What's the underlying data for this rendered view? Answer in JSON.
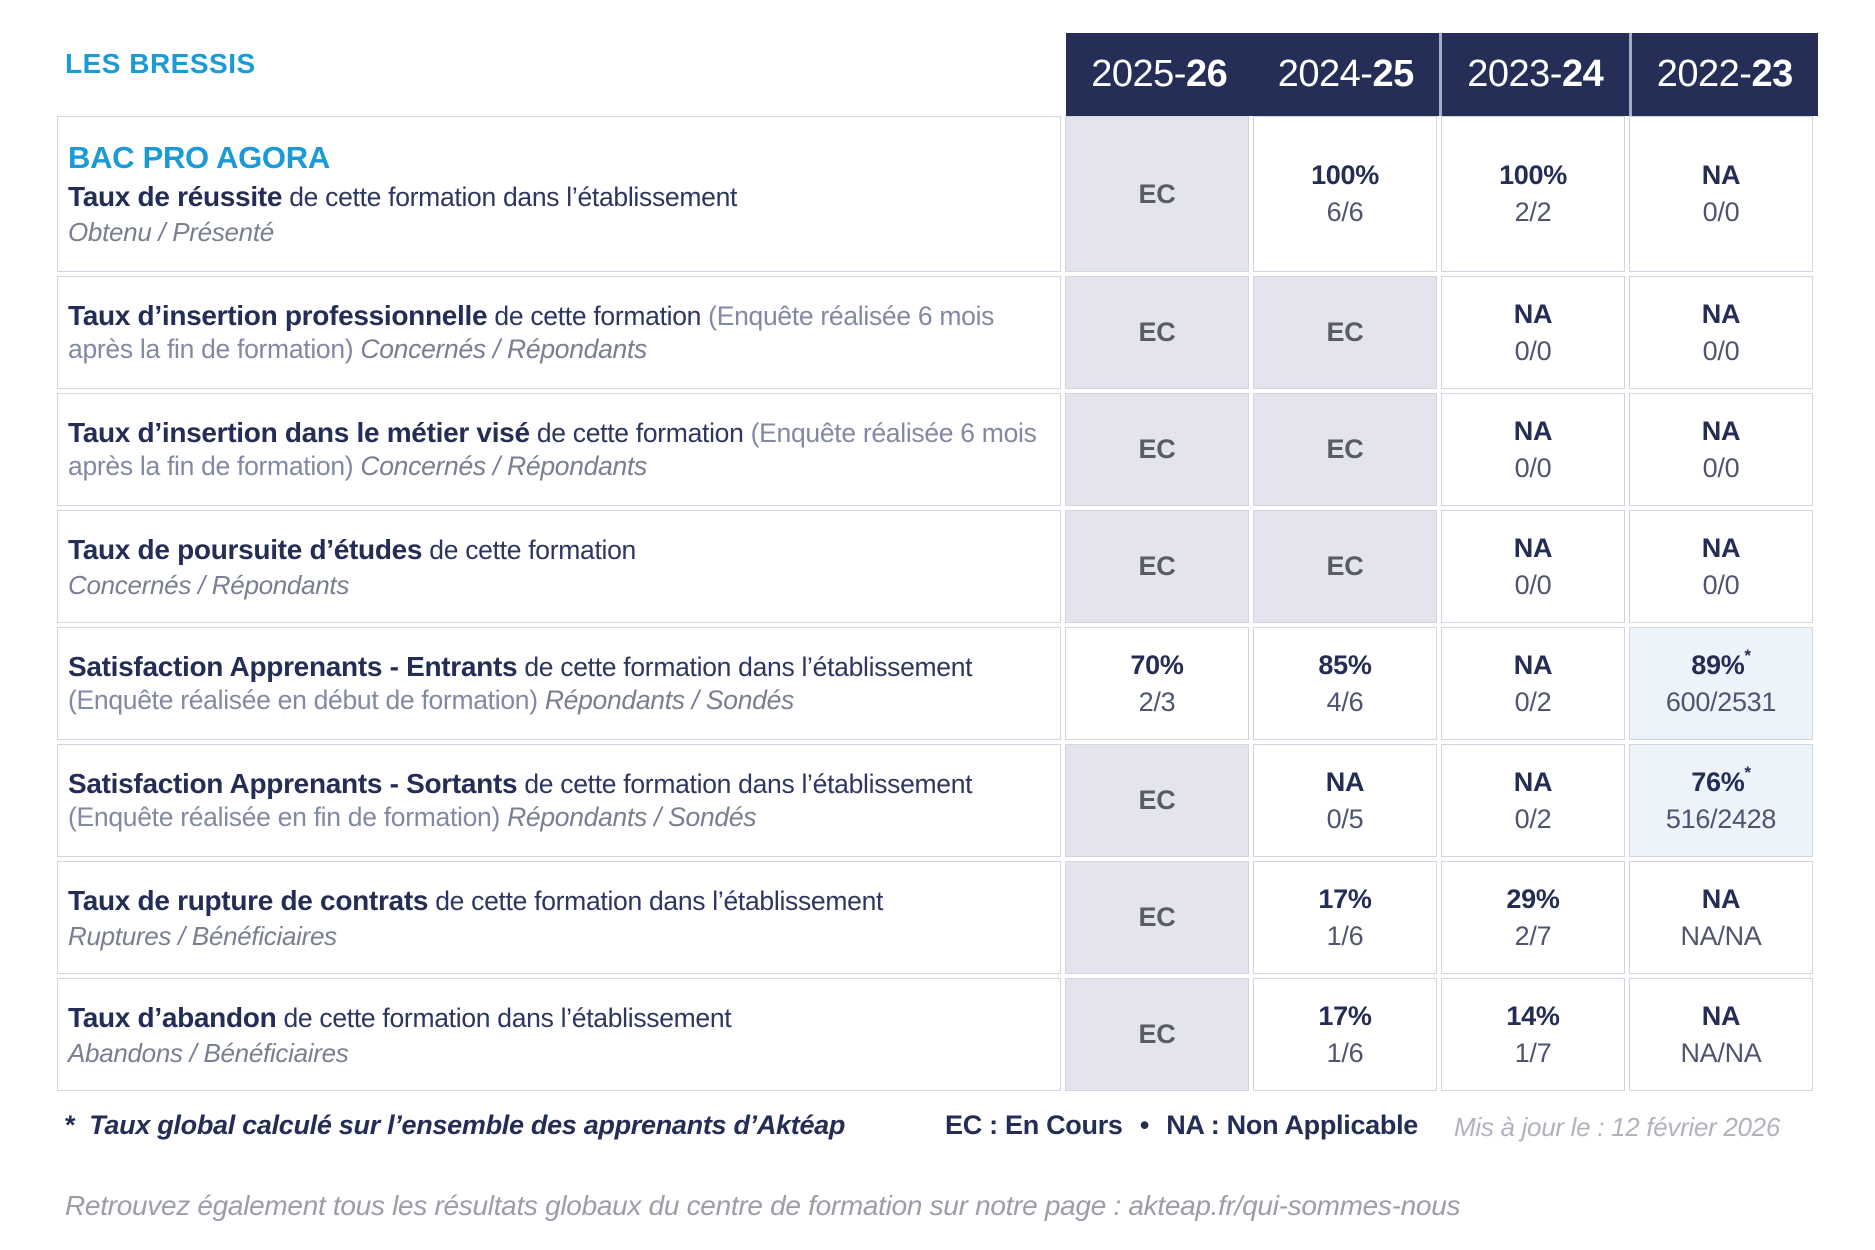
{
  "brand": {
    "site_name": "LES BRESSIS"
  },
  "table": {
    "program_title": "BAC PRO AGORA",
    "year_columns": [
      {
        "prefix": "2025-",
        "bold": "26"
      },
      {
        "prefix": "2024-",
        "bold": "25"
      },
      {
        "prefix": "2023-",
        "bold": "24"
      },
      {
        "prefix": "2022-",
        "bold": "23"
      }
    ],
    "rows": [
      {
        "bold": "Taux de réussite",
        "normal": "de cette formation dans l’établissement",
        "paren": "",
        "inline_italic": "",
        "block_italic": "Obtenu / Présenté",
        "cells": [
          {
            "main": "EC",
            "sub": ""
          },
          {
            "main": "100%",
            "sub": "6/6"
          },
          {
            "main": "100%",
            "sub": "2/2"
          },
          {
            "main": "NA",
            "sub": "0/0"
          }
        ]
      },
      {
        "bold": "Taux d’insertion professionnelle",
        "normal": "de cette formation",
        "paren": "(Enquête réalisée 6 mois après la fin de formation)",
        "inline_italic": "Concernés / Répondants",
        "block_italic": "",
        "cells": [
          {
            "main": "EC",
            "sub": ""
          },
          {
            "main": "EC",
            "sub": ""
          },
          {
            "main": "NA",
            "sub": "0/0"
          },
          {
            "main": "NA",
            "sub": "0/0"
          }
        ]
      },
      {
        "bold": "Taux d’insertion dans le métier visé",
        "normal": "de cette formation",
        "paren": "(Enquête réalisée 6 mois après la fin de formation)",
        "inline_italic": "Concernés / Répondants",
        "block_italic": "",
        "cells": [
          {
            "main": "EC",
            "sub": ""
          },
          {
            "main": "EC",
            "sub": ""
          },
          {
            "main": "NA",
            "sub": "0/0"
          },
          {
            "main": "NA",
            "sub": "0/0"
          }
        ]
      },
      {
        "bold": "Taux de poursuite d’études",
        "normal": "de cette formation",
        "paren": "",
        "inline_italic": "",
        "block_italic": "Concernés / Répondants",
        "cells": [
          {
            "main": "EC",
            "sub": ""
          },
          {
            "main": "EC",
            "sub": ""
          },
          {
            "main": "NA",
            "sub": "0/0"
          },
          {
            "main": "NA",
            "sub": "0/0"
          }
        ]
      },
      {
        "bold": "Satisfaction Apprenants - Entrants",
        "normal": "de cette formation dans l’établissement",
        "paren": "(Enquête réalisée en début de formation)",
        "inline_italic": "Répondants / Sondés",
        "block_italic": "",
        "cells": [
          {
            "main": "70%",
            "sub": "2/3"
          },
          {
            "main": "85%",
            "sub": "4/6"
          },
          {
            "main": "NA",
            "sub": "0/2"
          },
          {
            "main": "89%",
            "star": "*",
            "sub": "600/2531"
          }
        ]
      },
      {
        "bold": "Satisfaction Apprenants - Sortants",
        "normal": "de cette formation dans l’établissement",
        "paren": "(Enquête réalisée en fin de formation)",
        "inline_italic": "Répondants / Sondés",
        "block_italic": "",
        "cells": [
          {
            "main": "EC",
            "sub": ""
          },
          {
            "main": "NA",
            "sub": "0/5"
          },
          {
            "main": "NA",
            "sub": "0/2"
          },
          {
            "main": "76%",
            "star": "*",
            "sub": "516/2428"
          }
        ]
      },
      {
        "bold": "Taux de rupture de contrats",
        "normal": "de cette formation dans l’établissement",
        "paren": "",
        "inline_italic": "",
        "block_italic": "Ruptures / Bénéficiaires",
        "cells": [
          {
            "main": "EC",
            "sub": ""
          },
          {
            "main": "17%",
            "sub": "1/6"
          },
          {
            "main": "29%",
            "sub": "2/7"
          },
          {
            "main": "NA",
            "sub": "NA/NA"
          }
        ]
      },
      {
        "bold": "Taux d’abandon",
        "normal": "de cette formation dans l’établissement",
        "paren": "",
        "inline_italic": "",
        "block_italic": "Abandons / Bénéficiaires",
        "cells": [
          {
            "main": "EC",
            "sub": ""
          },
          {
            "main": "17%",
            "sub": "1/6"
          },
          {
            "main": "14%",
            "sub": "1/7"
          },
          {
            "main": "NA",
            "sub": "NA/NA"
          }
        ]
      }
    ]
  },
  "footer": {
    "star": "*",
    "note": "Taux global calculé sur l’ensemble des apprenants d’Aktéap",
    "legend_ec": "EC : En Cours",
    "bullet": "•",
    "legend_na": "NA : Non Applicable",
    "updated": "Mis à jour le : 12 février 2026",
    "bottom_note": "Retrouvez également tous les résultats globaux du centre de formation sur notre page : akteap.fr/qui-sommes-nous"
  },
  "colors": {
    "header_navy": "#242e57",
    "brand_blue": "#1a9ad7",
    "ec_cell_bg": "#e4e4ee",
    "highlight_cell_bg": "#ecf4fa",
    "navy_text": "#232d55"
  }
}
